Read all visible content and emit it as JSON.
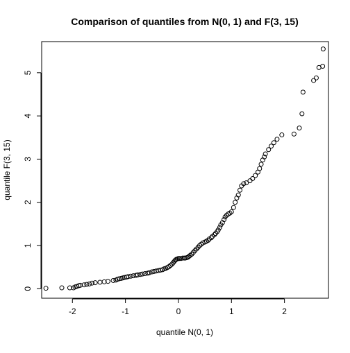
{
  "chart_data": {
    "type": "scatter",
    "title": "Comparison of quantiles from N(0, 1) and F(3, 15)",
    "xlabel": "quantile N(0, 1)",
    "ylabel": "quantile F(3, 15)",
    "xlim": [
      -2.58,
      2.83
    ],
    "ylim": [
      -0.22,
      5.72
    ],
    "x_ticks": [
      -2,
      -1,
      0,
      1,
      2
    ],
    "y_ticks": [
      0,
      1,
      2,
      3,
      4,
      5
    ],
    "grid": false,
    "legend": "none",
    "marker": "open-circle",
    "series": [
      {
        "points": [
          [
            -2.5,
            0.01
          ],
          [
            -2.2,
            0.02
          ],
          [
            -2.05,
            0.02
          ],
          [
            -1.98,
            0.02
          ],
          [
            -1.95,
            0.04
          ],
          [
            -1.92,
            0.05
          ],
          [
            -1.88,
            0.07
          ],
          [
            -1.85,
            0.08
          ],
          [
            -1.78,
            0.09
          ],
          [
            -1.73,
            0.1
          ],
          [
            -1.68,
            0.11
          ],
          [
            -1.63,
            0.13
          ],
          [
            -1.57,
            0.14
          ],
          [
            -1.48,
            0.15
          ],
          [
            -1.4,
            0.16
          ],
          [
            -1.33,
            0.17
          ],
          [
            -1.23,
            0.19
          ],
          [
            -1.18,
            0.2
          ],
          [
            -1.15,
            0.22
          ],
          [
            -1.12,
            0.23
          ],
          [
            -1.08,
            0.24
          ],
          [
            -1.05,
            0.25
          ],
          [
            -1.02,
            0.26
          ],
          [
            -0.98,
            0.27
          ],
          [
            -0.95,
            0.28
          ],
          [
            -0.9,
            0.29
          ],
          [
            -0.85,
            0.3
          ],
          [
            -0.8,
            0.31
          ],
          [
            -0.77,
            0.32
          ],
          [
            -0.72,
            0.33
          ],
          [
            -0.68,
            0.34
          ],
          [
            -0.63,
            0.35
          ],
          [
            -0.58,
            0.36
          ],
          [
            -0.55,
            0.37
          ],
          [
            -0.5,
            0.39
          ],
          [
            -0.46,
            0.4
          ],
          [
            -0.42,
            0.41
          ],
          [
            -0.38,
            0.42
          ],
          [
            -0.34,
            0.43
          ],
          [
            -0.3,
            0.44
          ],
          [
            -0.27,
            0.46
          ],
          [
            -0.24,
            0.47
          ],
          [
            -0.21,
            0.49
          ],
          [
            -0.18,
            0.51
          ],
          [
            -0.15,
            0.54
          ],
          [
            -0.12,
            0.57
          ],
          [
            -0.1,
            0.6
          ],
          [
            -0.08,
            0.63
          ],
          [
            -0.06,
            0.66
          ],
          [
            -0.04,
            0.68
          ],
          [
            -0.02,
            0.69
          ],
          [
            0.0,
            0.7
          ],
          [
            0.02,
            0.7
          ],
          [
            0.05,
            0.7
          ],
          [
            0.08,
            0.71
          ],
          [
            0.11,
            0.71
          ],
          [
            0.13,
            0.71
          ],
          [
            0.16,
            0.72
          ],
          [
            0.18,
            0.73
          ],
          [
            0.2,
            0.75
          ],
          [
            0.22,
            0.77
          ],
          [
            0.25,
            0.8
          ],
          [
            0.28,
            0.84
          ],
          [
            0.31,
            0.88
          ],
          [
            0.34,
            0.92
          ],
          [
            0.37,
            0.96
          ],
          [
            0.4,
            1.0
          ],
          [
            0.43,
            1.03
          ],
          [
            0.46,
            1.06
          ],
          [
            0.5,
            1.08
          ],
          [
            0.53,
            1.1
          ],
          [
            0.56,
            1.12
          ],
          [
            0.58,
            1.15
          ],
          [
            0.62,
            1.18
          ],
          [
            0.64,
            1.21
          ],
          [
            0.68,
            1.25
          ],
          [
            0.7,
            1.28
          ],
          [
            0.73,
            1.32
          ],
          [
            0.75,
            1.36
          ],
          [
            0.78,
            1.42
          ],
          [
            0.8,
            1.48
          ],
          [
            0.83,
            1.53
          ],
          [
            0.86,
            1.6
          ],
          [
            0.88,
            1.66
          ],
          [
            0.91,
            1.7
          ],
          [
            0.94,
            1.73
          ],
          [
            0.97,
            1.75
          ],
          [
            1.0,
            1.78
          ],
          [
            1.04,
            1.88
          ],
          [
            1.07,
            2.0
          ],
          [
            1.1,
            2.1
          ],
          [
            1.13,
            2.17
          ],
          [
            1.16,
            2.28
          ],
          [
            1.19,
            2.38
          ],
          [
            1.23,
            2.43
          ],
          [
            1.28,
            2.45
          ],
          [
            1.35,
            2.5
          ],
          [
            1.4,
            2.55
          ],
          [
            1.45,
            2.62
          ],
          [
            1.5,
            2.7
          ],
          [
            1.53,
            2.78
          ],
          [
            1.56,
            2.88
          ],
          [
            1.59,
            2.98
          ],
          [
            1.62,
            3.05
          ],
          [
            1.64,
            3.12
          ],
          [
            1.7,
            3.22
          ],
          [
            1.75,
            3.3
          ],
          [
            1.8,
            3.38
          ],
          [
            1.86,
            3.46
          ],
          [
            1.95,
            3.56
          ],
          [
            2.18,
            3.58
          ],
          [
            2.28,
            3.72
          ],
          [
            2.33,
            4.05
          ],
          [
            2.35,
            4.55
          ],
          [
            2.55,
            4.82
          ],
          [
            2.6,
            4.88
          ],
          [
            2.65,
            5.12
          ],
          [
            2.72,
            5.15
          ],
          [
            2.73,
            5.55
          ]
        ]
      }
    ]
  }
}
